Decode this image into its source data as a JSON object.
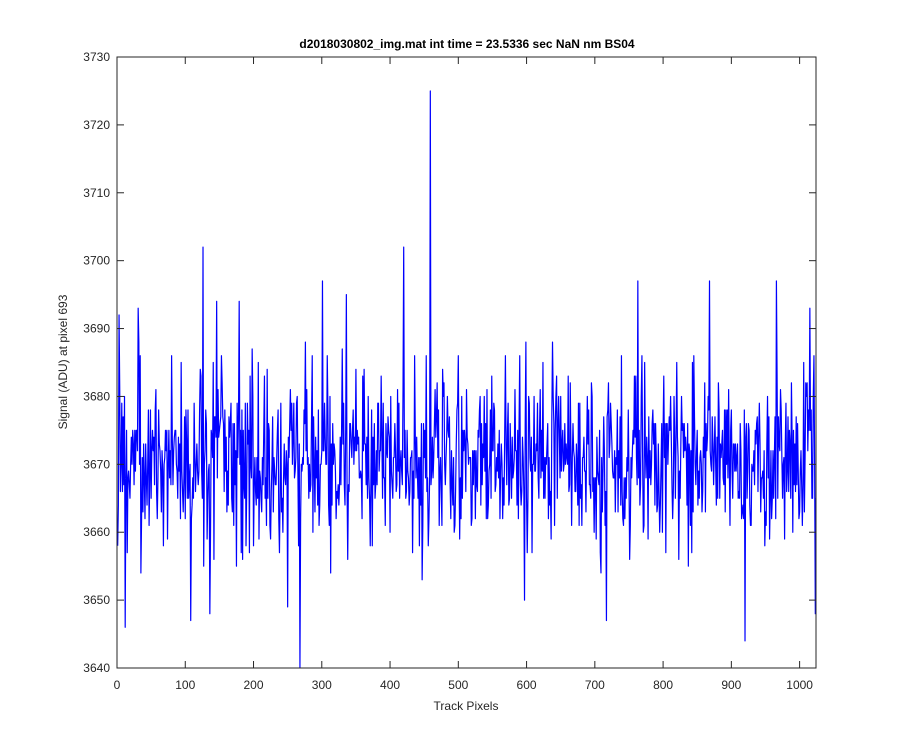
{
  "chart_data": {
    "type": "line",
    "title": "d2018030802_img.mat int time = 23.5336 sec  NaN nm BS04",
    "xlabel": "Track Pixels",
    "ylabel": "Signal (ADU) at pixel 693",
    "xlim": [
      0,
      1024
    ],
    "ylim": [
      3640,
      3730
    ],
    "xticks": [
      "0",
      "100",
      "200",
      "300",
      "400",
      "500",
      "600",
      "700",
      "800",
      "900",
      "1000"
    ],
    "yticks": [
      "3640",
      "3650",
      "3660",
      "3670",
      "3680",
      "3690",
      "3700",
      "3710",
      "3720",
      "3730"
    ],
    "grid": false,
    "legend": "none",
    "line_color": "#0000ff",
    "series": [
      {
        "x_start": 1,
        "x_step": 1,
        "n_points": 1024,
        "baseline": 3671,
        "noise_sd": 7,
        "spikes": [
          {
            "x": 3,
            "y": 3692
          },
          {
            "x": 12,
            "y": 3646
          },
          {
            "x": 31,
            "y": 3693
          },
          {
            "x": 126,
            "y": 3702
          },
          {
            "x": 108,
            "y": 3647
          },
          {
            "x": 136,
            "y": 3648
          },
          {
            "x": 146,
            "y": 3694
          },
          {
            "x": 179,
            "y": 3694
          },
          {
            "x": 250,
            "y": 3649
          },
          {
            "x": 268,
            "y": 3640
          },
          {
            "x": 301,
            "y": 3697
          },
          {
            "x": 336,
            "y": 3695
          },
          {
            "x": 420,
            "y": 3702
          },
          {
            "x": 459,
            "y": 3725
          },
          {
            "x": 447,
            "y": 3653
          },
          {
            "x": 597,
            "y": 3650
          },
          {
            "x": 717,
            "y": 3647
          },
          {
            "x": 763,
            "y": 3697
          },
          {
            "x": 868,
            "y": 3697
          },
          {
            "x": 920,
            "y": 3644
          },
          {
            "x": 966,
            "y": 3697
          },
          {
            "x": 1015,
            "y": 3693
          },
          {
            "x": 1023,
            "y": 3648
          }
        ]
      }
    ]
  }
}
